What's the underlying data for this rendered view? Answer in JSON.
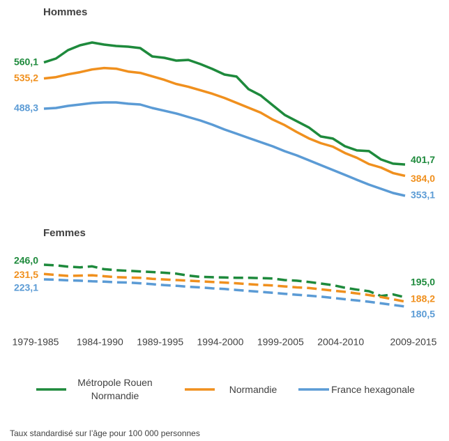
{
  "chart_data": [
    {
      "type": "line",
      "title": "Hommes",
      "dash": false,
      "series": [
        {
          "name": "Métropole Rouen Normandie",
          "color": "#1e8a3c",
          "values": [
            560.1,
            566.1,
            579.1,
            586.7,
            591.0,
            587.8,
            585.6,
            584.5,
            582.3,
            569.4,
            567.2,
            562.9,
            564.0,
            557.5,
            549.9,
            541.3,
            538.1,
            518.6,
            508.9,
            493.7,
            478.6,
            468.9,
            459.2,
            445.1,
            441.9,
            430.0,
            423.5,
            422.4,
            409.4,
            402.9,
            401.7
          ],
          "value_labels": [
            "560,1",
            null,
            null,
            null,
            null,
            null,
            null,
            null,
            null,
            null,
            null,
            null,
            null,
            null,
            null,
            null,
            null,
            null,
            null,
            null,
            null,
            null,
            null,
            null,
            null,
            null,
            null,
            null,
            null,
            null,
            "401,7"
          ]
        },
        {
          "name": "Normandie",
          "color": "#f0901e",
          "values": [
            535.2,
            537.3,
            541.6,
            544.9,
            549.2,
            551.4,
            550.3,
            545.9,
            543.8,
            538.4,
            533.0,
            526.5,
            522.2,
            516.8,
            511.4,
            504.9,
            497.4,
            489.8,
            482.2,
            471.4,
            462.8,
            452.0,
            442.2,
            434.7,
            429.3,
            419.5,
            412.0,
            402.3,
            396.9,
            388.3,
            384.0
          ],
          "value_labels": [
            "535,2",
            null,
            null,
            null,
            null,
            null,
            null,
            null,
            null,
            null,
            null,
            null,
            null,
            null,
            null,
            null,
            null,
            null,
            null,
            null,
            null,
            null,
            null,
            null,
            null,
            null,
            null,
            null,
            null,
            null,
            "384,0"
          ]
        },
        {
          "name": "France hexagonale",
          "color": "#5b9bd5",
          "values": [
            488.3,
            489.4,
            492.6,
            494.8,
            497.0,
            498.0,
            498.0,
            495.9,
            494.8,
            489.4,
            485.1,
            480.8,
            475.3,
            469.9,
            463.4,
            455.9,
            449.4,
            442.9,
            436.4,
            429.9,
            422.3,
            415.8,
            408.2,
            400.7,
            393.1,
            385.5,
            377.9,
            370.4,
            363.9,
            357.4,
            353.1
          ],
          "value_labels": [
            "488,3",
            null,
            null,
            null,
            null,
            null,
            null,
            null,
            null,
            null,
            null,
            null,
            null,
            null,
            null,
            null,
            null,
            null,
            null,
            null,
            null,
            null,
            null,
            null,
            null,
            null,
            null,
            null,
            null,
            null,
            "353,1"
          ]
        }
      ]
    },
    {
      "type": "line",
      "title": "Femmes",
      "dash": true,
      "categories": [
        "1979-1985",
        null,
        null,
        null,
        null,
        "1984-1990",
        null,
        null,
        null,
        null,
        "1989-1995",
        null,
        null,
        null,
        null,
        "1994-2000",
        null,
        null,
        null,
        null,
        "1999-2005",
        null,
        null,
        null,
        null,
        "2004-2010",
        null,
        null,
        null,
        null,
        "2009-2015"
      ],
      "series": [
        {
          "name": "Métropole Rouen Normandie",
          "color": "#1e8a3c",
          "values": [
            246.0,
            245.0,
            243.0,
            242.0,
            243.5,
            239.0,
            237.5,
            236.5,
            235.5,
            234.5,
            233.5,
            232.0,
            229.0,
            227.0,
            226.5,
            226.0,
            225.5,
            225.5,
            225.0,
            224.5,
            222.0,
            221.0,
            219.0,
            216.5,
            214.0,
            210.0,
            207.0,
            204.5,
            197.0,
            199.5,
            195.0
          ],
          "value_labels": [
            "246,0",
            null,
            null,
            null,
            null,
            null,
            null,
            null,
            null,
            null,
            null,
            null,
            null,
            null,
            null,
            null,
            null,
            null,
            null,
            null,
            null,
            null,
            null,
            null,
            null,
            null,
            null,
            null,
            null,
            null,
            "195,0"
          ]
        },
        {
          "name": "Normandie",
          "color": "#f0901e",
          "values": [
            231.5,
            230.0,
            228.5,
            229.0,
            229.5,
            228.0,
            226.5,
            226.0,
            225.5,
            224.0,
            223.0,
            222.0,
            221.0,
            220.0,
            219.0,
            218.0,
            217.0,
            215.5,
            214.5,
            213.5,
            212.0,
            210.5,
            209.5,
            207.5,
            205.5,
            203.5,
            201.0,
            198.5,
            195.5,
            192.0,
            188.2
          ],
          "value_labels": [
            "231,5",
            null,
            null,
            null,
            null,
            null,
            null,
            null,
            null,
            null,
            null,
            null,
            null,
            null,
            null,
            null,
            null,
            null,
            null,
            null,
            null,
            null,
            null,
            null,
            null,
            null,
            null,
            null,
            null,
            null,
            "188,2"
          ]
        },
        {
          "name": "France hexagonale",
          "color": "#5b9bd5",
          "values": [
            223.1,
            222.5,
            221.5,
            221.0,
            220.0,
            219.5,
            218.5,
            218.0,
            217.0,
            215.5,
            214.0,
            213.0,
            211.5,
            210.5,
            209.0,
            208.0,
            206.5,
            205.0,
            203.5,
            202.0,
            200.5,
            199.0,
            197.5,
            196.0,
            194.0,
            192.0,
            190.0,
            188.0,
            185.5,
            183.0,
            180.5
          ],
          "value_labels": [
            "223,1",
            null,
            null,
            null,
            null,
            null,
            null,
            null,
            null,
            null,
            null,
            null,
            null,
            null,
            null,
            null,
            null,
            null,
            null,
            null,
            null,
            null,
            null,
            null,
            null,
            null,
            null,
            null,
            null,
            null,
            "180,5"
          ]
        }
      ]
    }
  ],
  "footnote": "Taux standardisé sur l’âge pour 100 000 personnes"
}
